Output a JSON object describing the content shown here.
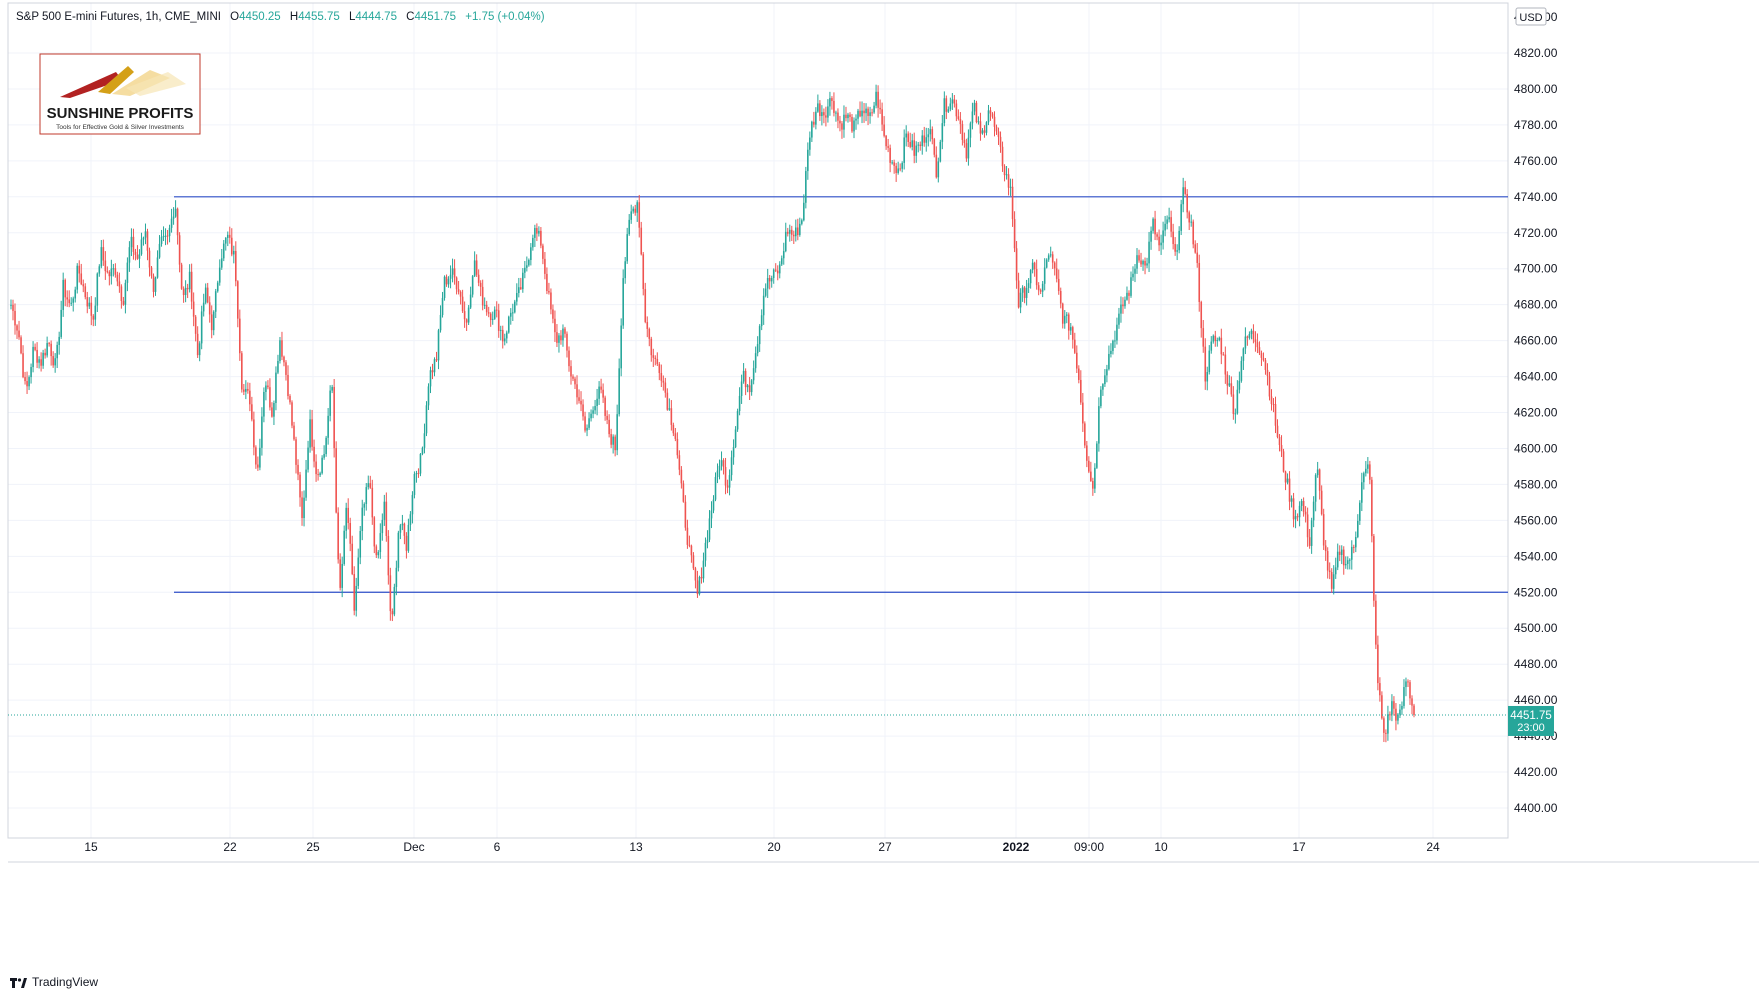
{
  "header": {
    "symbol": "S&P 500 E-mini Futures, 1h, CME_MINI",
    "o_label": "O",
    "o_value": "4450.25",
    "h_label": "H",
    "h_value": "4455.75",
    "l_label": "L",
    "l_value": "4444.75",
    "c_label": "C",
    "c_value": "4451.75",
    "change": "+1.75 (+0.04%)"
  },
  "logo": {
    "name": "SUNSHINE PROFITS",
    "tagline": "Tools for Effective Gold & Silver Investments"
  },
  "currency_badge": "USD",
  "price_label": {
    "value": "4451.75",
    "countdown": "23:00"
  },
  "footer": {
    "brand": "TradingView"
  },
  "colors": {
    "up": "#26a69a",
    "down": "#ef5350",
    "levels": "#2e4fc7",
    "last_price": "#26a69a"
  },
  "chart_data": {
    "type": "candlestick",
    "title": "S&P 500 E-mini Futures, 1h, CME_MINI",
    "ylim": [
      4385,
      4835
    ],
    "y_ticks": [
      "4400.00",
      "4420.00",
      "4440.00",
      "4460.00",
      "4480.00",
      "4500.00",
      "4520.00",
      "4540.00",
      "4560.00",
      "4580.00",
      "4600.00",
      "4620.00",
      "4640.00",
      "4660.00",
      "4680.00",
      "4700.00",
      "4720.00",
      "4740.00",
      "4760.00",
      "4780.00",
      "4800.00",
      "4820.00"
    ],
    "x_ticks": [
      {
        "label": "15",
        "bold": false
      },
      {
        "label": "22",
        "bold": false
      },
      {
        "label": "25",
        "bold": false
      },
      {
        "label": "Dec",
        "bold": false
      },
      {
        "label": "6",
        "bold": false
      },
      {
        "label": "13",
        "bold": false
      },
      {
        "label": "20",
        "bold": false
      },
      {
        "label": "27",
        "bold": false
      },
      {
        "label": "2022",
        "bold": true
      },
      {
        "label": "09:00",
        "bold": false
      },
      {
        "label": "10",
        "bold": false
      },
      {
        "label": "17",
        "bold": false
      },
      {
        "label": "24",
        "bold": false
      }
    ],
    "levels": [
      4740,
      4520
    ],
    "last_price": 4451.75,
    "path": [
      4680,
      4665,
      4630,
      4655,
      4648,
      4660,
      4645,
      4690,
      4678,
      4700,
      4685,
      4672,
      4710,
      4696,
      4700,
      4682,
      4715,
      4705,
      4722,
      4688,
      4713,
      4716,
      4738,
      4682,
      4695,
      4652,
      4688,
      4667,
      4706,
      4718,
      4705,
      4632,
      4628,
      4585,
      4640,
      4620,
      4662,
      4638,
      4600,
      4560,
      4615,
      4585,
      4598,
      4638,
      4515,
      4570,
      4510,
      4562,
      4582,
      4534,
      4570,
      4498,
      4560,
      4546,
      4585,
      4594,
      4640,
      4650,
      4692,
      4698,
      4690,
      4668,
      4705,
      4685,
      4676,
      4675,
      4660,
      4676,
      4685,
      4700,
      4722,
      4715,
      4685,
      4660,
      4665,
      4642,
      4630,
      4608,
      4625,
      4632,
      4610,
      4600,
      4695,
      4730,
      4738,
      4672,
      4650,
      4645,
      4625,
      4608,
      4570,
      4540,
      4518,
      4545,
      4570,
      4595,
      4580,
      4610,
      4640,
      4635,
      4660,
      4690,
      4695,
      4700,
      4722,
      4718,
      4728,
      4775,
      4790,
      4787,
      4795,
      4780,
      4785,
      4778,
      4790,
      4782,
      4797,
      4773,
      4760,
      4755,
      4775,
      4765,
      4770,
      4780,
      4755,
      4790,
      4795,
      4785,
      4765,
      4790,
      4772,
      4790,
      4775,
      4757,
      4742,
      4680,
      4690,
      4700,
      4685,
      4710,
      4695,
      4672,
      4668,
      4643,
      4600,
      4577,
      4635,
      4650,
      4665,
      4680,
      4690,
      4710,
      4700,
      4725,
      4710,
      4730,
      4705,
      4742,
      4728,
      4698,
      4640,
      4660,
      4660,
      4638,
      4620,
      4655,
      4664,
      4660,
      4648,
      4625,
      4600,
      4580,
      4562,
      4570,
      4548,
      4590,
      4545,
      4520,
      4544,
      4536,
      4545,
      4583,
      4590,
      4475,
      4440,
      4458,
      4448,
      4473,
      4451.75
    ]
  }
}
